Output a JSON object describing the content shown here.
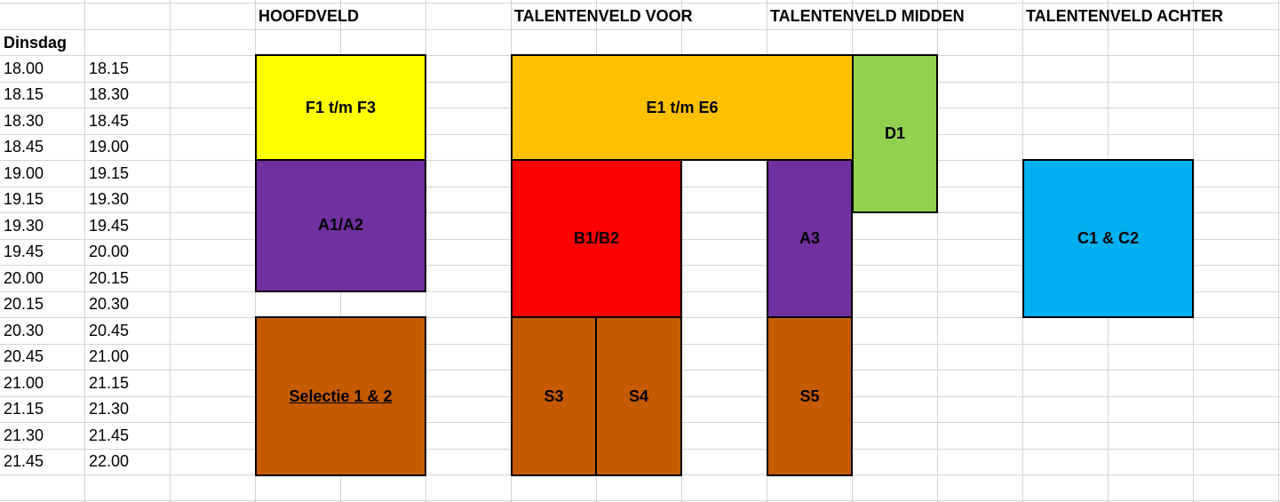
{
  "headers": {
    "day": "Dinsdag",
    "hoofdveld": "HOOFDVELD",
    "voor": "TALENTENVELD VOOR",
    "midden": "TALENTENVELD MIDDEN",
    "achter": "TALENTENVELD ACHTER"
  },
  "times": [
    [
      "18.00",
      "18.15"
    ],
    [
      "18.15",
      "18.30"
    ],
    [
      "18.30",
      "18.45"
    ],
    [
      "18.45",
      "19.00"
    ],
    [
      "19.00",
      "19.15"
    ],
    [
      "19.15",
      "19.30"
    ],
    [
      "19.30",
      "19.45"
    ],
    [
      "19.45",
      "20.00"
    ],
    [
      "20.00",
      "20.15"
    ],
    [
      "20.15",
      "20.30"
    ],
    [
      "20.30",
      "20.45"
    ],
    [
      "20.45",
      "21.00"
    ],
    [
      "21.00",
      "21.15"
    ],
    [
      "21.15",
      "21.30"
    ],
    [
      "21.30",
      "21.45"
    ],
    [
      "21.45",
      "22.00"
    ]
  ],
  "blocks": {
    "f1f3": "F1 t/m F3",
    "a1a2": "A1/A2",
    "selectie": "Selectie 1 & 2",
    "e1e6": "E1 t/m E6",
    "d1": "D1",
    "b1b2": "B1/B2",
    "a3": "A3",
    "s3": "S3",
    "s4": "S4",
    "s5": "S5",
    "c1c2": "C1 & C2"
  },
  "colors": {
    "yellow": "#ffff00",
    "purple": "#7030a0",
    "brown": "#c55a00",
    "orange": "#ffc000",
    "green": "#92d050",
    "red": "#ff0000",
    "blue": "#00b0f0"
  }
}
